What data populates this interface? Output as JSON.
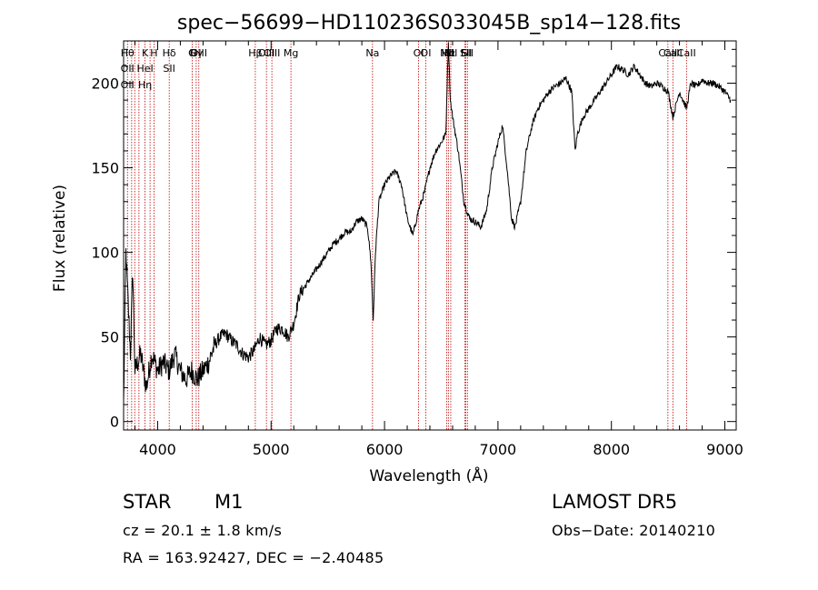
{
  "chart_data": {
    "type": "line",
    "title": "spec−56699−HD110236S033045B_sp14−128.fits",
    "xlabel": "Wavelength (Å)",
    "ylabel": "Flux (relative)",
    "xlim": [
      3700,
      9100
    ],
    "ylim": [
      -5,
      225
    ],
    "x_ticks": [
      4000,
      5000,
      6000,
      7000,
      8000,
      9000
    ],
    "y_ticks": [
      0,
      50,
      100,
      150,
      200
    ],
    "series": [
      {
        "color": "#000000",
        "anchors": [
          [
            3700,
            10
          ],
          [
            3720,
            100
          ],
          [
            3740,
            70
          ],
          [
            3760,
            40
          ],
          [
            3780,
            90
          ],
          [
            3800,
            30
          ],
          [
            3850,
            40
          ],
          [
            3900,
            20
          ],
          [
            3950,
            40
          ],
          [
            4000,
            30
          ],
          [
            4050,
            35
          ],
          [
            4100,
            30
          ],
          [
            4150,
            40
          ],
          [
            4200,
            30
          ],
          [
            4250,
            25
          ],
          [
            4300,
            30
          ],
          [
            4350,
            25
          ],
          [
            4400,
            30
          ],
          [
            4450,
            35
          ],
          [
            4500,
            45
          ],
          [
            4550,
            50
          ],
          [
            4600,
            52
          ],
          [
            4650,
            48
          ],
          [
            4700,
            45
          ],
          [
            4750,
            40
          ],
          [
            4800,
            38
          ],
          [
            4850,
            42
          ],
          [
            4900,
            50
          ],
          [
            4950,
            45
          ],
          [
            5000,
            48
          ],
          [
            5050,
            55
          ],
          [
            5100,
            55
          ],
          [
            5150,
            50
          ],
          [
            5200,
            58
          ],
          [
            5250,
            75
          ],
          [
            5300,
            80
          ],
          [
            5350,
            85
          ],
          [
            5400,
            90
          ],
          [
            5450,
            95
          ],
          [
            5500,
            100
          ],
          [
            5550,
            105
          ],
          [
            5600,
            108
          ],
          [
            5650,
            112
          ],
          [
            5700,
            112
          ],
          [
            5750,
            118
          ],
          [
            5800,
            120
          ],
          [
            5850,
            115
          ],
          [
            5880,
            95
          ],
          [
            5900,
            60
          ],
          [
            5920,
            100
          ],
          [
            5950,
            130
          ],
          [
            6000,
            140
          ],
          [
            6050,
            145
          ],
          [
            6100,
            148
          ],
          [
            6150,
            140
          ],
          [
            6200,
            120
          ],
          [
            6250,
            110
          ],
          [
            6300,
            125
          ],
          [
            6350,
            135
          ],
          [
            6400,
            150
          ],
          [
            6450,
            160
          ],
          [
            6500,
            165
          ],
          [
            6540,
            170
          ],
          [
            6563,
            225
          ],
          [
            6580,
            190
          ],
          [
            6600,
            180
          ],
          [
            6650,
            160
          ],
          [
            6700,
            130
          ],
          [
            6750,
            120
          ],
          [
            6800,
            118
          ],
          [
            6850,
            115
          ],
          [
            6900,
            125
          ],
          [
            6950,
            150
          ],
          [
            7000,
            165
          ],
          [
            7040,
            175
          ],
          [
            7080,
            150
          ],
          [
            7120,
            120
          ],
          [
            7150,
            115
          ],
          [
            7200,
            130
          ],
          [
            7250,
            160
          ],
          [
            7300,
            175
          ],
          [
            7350,
            185
          ],
          [
            7400,
            190
          ],
          [
            7450,
            195
          ],
          [
            7500,
            198
          ],
          [
            7550,
            200
          ],
          [
            7600,
            203
          ],
          [
            7650,
            195
          ],
          [
            7680,
            160
          ],
          [
            7700,
            170
          ],
          [
            7750,
            180
          ],
          [
            7800,
            185
          ],
          [
            7850,
            190
          ],
          [
            7900,
            195
          ],
          [
            7950,
            200
          ],
          [
            8000,
            205
          ],
          [
            8050,
            210
          ],
          [
            8100,
            208
          ],
          [
            8150,
            205
          ],
          [
            8200,
            210
          ],
          [
            8250,
            205
          ],
          [
            8300,
            200
          ],
          [
            8350,
            198
          ],
          [
            8400,
            200
          ],
          [
            8450,
            198
          ],
          [
            8500,
            195
          ],
          [
            8542,
            180
          ],
          [
            8600,
            195
          ],
          [
            8662,
            185
          ],
          [
            8700,
            200
          ],
          [
            8750,
            198
          ],
          [
            8800,
            202
          ],
          [
            8850,
            200
          ],
          [
            8900,
            200
          ],
          [
            8950,
            198
          ],
          [
            9000,
            195
          ],
          [
            9050,
            190
          ]
        ]
      }
    ],
    "line_markers": [
      {
        "lambda": 3734,
        "labels": [
          "Hθ",
          "OII",
          "OII"
        ]
      },
      {
        "lambda": 3771,
        "labels": [],
        "row": null
      },
      {
        "lambda": 3798,
        "labels": []
      },
      {
        "lambda": 3835,
        "labels": []
      },
      {
        "lambda": 3889,
        "labels": [
          "K",
          "HeI",
          "Hη"
        ]
      },
      {
        "lambda": 3933,
        "labels": []
      },
      {
        "lambda": 3968,
        "labels": [
          "H"
        ]
      },
      {
        "lambda": 4102,
        "labels": [
          "Hδ",
          "SII"
        ]
      },
      {
        "lambda": 4304,
        "labels": [
          "G"
        ]
      },
      {
        "lambda": 4340,
        "labels": [
          "Hγ"
        ]
      },
      {
        "lambda": 4363,
        "labels": [
          "OIII"
        ]
      },
      {
        "lambda": 4861,
        "labels": [
          "Hβ"
        ]
      },
      {
        "lambda": 4959,
        "labels": [
          "OIII"
        ]
      },
      {
        "lambda": 5007,
        "labels": [
          "OIII"
        ]
      },
      {
        "lambda": 5175,
        "labels": [
          "Mg"
        ]
      },
      {
        "lambda": 5894,
        "labels": [
          "Na"
        ]
      },
      {
        "lambda": 6300,
        "labels": [
          "OI"
        ]
      },
      {
        "lambda": 6364,
        "labels": [
          "OI"
        ]
      },
      {
        "lambda": 6548,
        "labels": [
          "NII"
        ]
      },
      {
        "lambda": 6563,
        "labels": [
          "Hα"
        ]
      },
      {
        "lambda": 6584,
        "labels": [
          "NII"
        ]
      },
      {
        "lambda": 6708,
        "labels": [
          "Li"
        ]
      },
      {
        "lambda": 6717,
        "labels": [
          "SII"
        ]
      },
      {
        "lambda": 6731,
        "labels": [
          "SII"
        ]
      },
      {
        "lambda": 8498,
        "labels": [
          "CaII"
        ]
      },
      {
        "lambda": 8542,
        "labels": [
          "CaII"
        ]
      },
      {
        "lambda": 8662,
        "labels": [
          "CaII"
        ]
      }
    ],
    "grid": false
  },
  "info": {
    "object_class": "STAR",
    "subclass": "M1",
    "survey": "LAMOST DR5",
    "cz": "cz = 20.1 ± 1.8 km/s",
    "obs_date": "Obs−Date: 20140210",
    "coords": "RA = 163.92427, DEC =  −2.40485"
  }
}
